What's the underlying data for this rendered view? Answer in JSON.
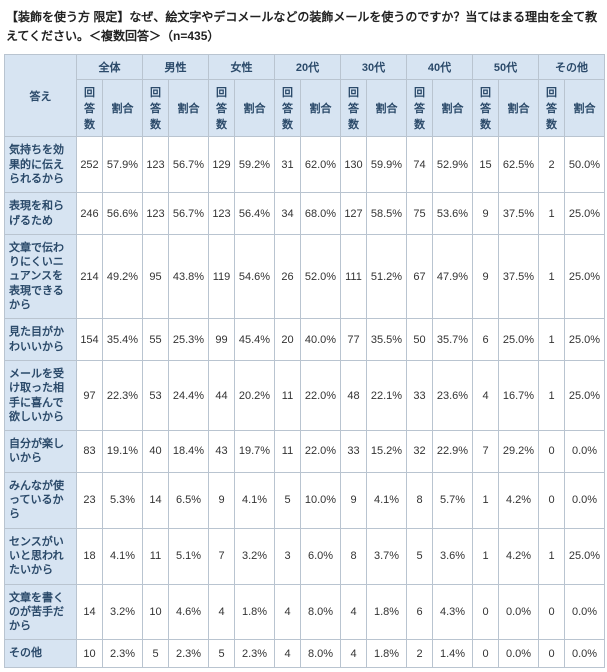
{
  "title": "【装飾を使う方 限定】なぜ、絵文字やデコメールなどの装飾メールを使うのですか？当てはまる理由を全て教えてください。＜複数回答＞（n=435）",
  "header": {
    "answer": "答え",
    "groups": [
      "全体",
      "男性",
      "女性",
      "20代",
      "30代",
      "40代",
      "50代",
      "その他"
    ],
    "sub_count": "回答数",
    "sub_pct": "割合"
  },
  "rows": [
    {
      "label": "気持ちを効果的に伝えられるから",
      "cells": [
        [
          "252",
          "57.9%"
        ],
        [
          "123",
          "56.7%"
        ],
        [
          "129",
          "59.2%"
        ],
        [
          "31",
          "62.0%"
        ],
        [
          "130",
          "59.9%"
        ],
        [
          "74",
          "52.9%"
        ],
        [
          "15",
          "62.5%"
        ],
        [
          "2",
          "50.0%"
        ]
      ]
    },
    {
      "label": "表現を和らげるため",
      "cells": [
        [
          "246",
          "56.6%"
        ],
        [
          "123",
          "56.7%"
        ],
        [
          "123",
          "56.4%"
        ],
        [
          "34",
          "68.0%"
        ],
        [
          "127",
          "58.5%"
        ],
        [
          "75",
          "53.6%"
        ],
        [
          "9",
          "37.5%"
        ],
        [
          "1",
          "25.0%"
        ]
      ]
    },
    {
      "label": "文章で伝わりにくいニュアンスを表現できるから",
      "cells": [
        [
          "214",
          "49.2%"
        ],
        [
          "95",
          "43.8%"
        ],
        [
          "119",
          "54.6%"
        ],
        [
          "26",
          "52.0%"
        ],
        [
          "111",
          "51.2%"
        ],
        [
          "67",
          "47.9%"
        ],
        [
          "9",
          "37.5%"
        ],
        [
          "1",
          "25.0%"
        ]
      ]
    },
    {
      "label": "見た目がかわいいから",
      "cells": [
        [
          "154",
          "35.4%"
        ],
        [
          "55",
          "25.3%"
        ],
        [
          "99",
          "45.4%"
        ],
        [
          "20",
          "40.0%"
        ],
        [
          "77",
          "35.5%"
        ],
        [
          "50",
          "35.7%"
        ],
        [
          "6",
          "25.0%"
        ],
        [
          "1",
          "25.0%"
        ]
      ]
    },
    {
      "label": "メールを受け取った相手に喜んで欲しいから",
      "cells": [
        [
          "97",
          "22.3%"
        ],
        [
          "53",
          "24.4%"
        ],
        [
          "44",
          "20.2%"
        ],
        [
          "11",
          "22.0%"
        ],
        [
          "48",
          "22.1%"
        ],
        [
          "33",
          "23.6%"
        ],
        [
          "4",
          "16.7%"
        ],
        [
          "1",
          "25.0%"
        ]
      ]
    },
    {
      "label": "自分が楽しいから",
      "cells": [
        [
          "83",
          "19.1%"
        ],
        [
          "40",
          "18.4%"
        ],
        [
          "43",
          "19.7%"
        ],
        [
          "11",
          "22.0%"
        ],
        [
          "33",
          "15.2%"
        ],
        [
          "32",
          "22.9%"
        ],
        [
          "7",
          "29.2%"
        ],
        [
          "0",
          "0.0%"
        ]
      ]
    },
    {
      "label": "みんなが使っているから",
      "cells": [
        [
          "23",
          "5.3%"
        ],
        [
          "14",
          "6.5%"
        ],
        [
          "9",
          "4.1%"
        ],
        [
          "5",
          "10.0%"
        ],
        [
          "9",
          "4.1%"
        ],
        [
          "8",
          "5.7%"
        ],
        [
          "1",
          "4.2%"
        ],
        [
          "0",
          "0.0%"
        ]
      ]
    },
    {
      "label": "センスがいいと思われたいから",
      "cells": [
        [
          "18",
          "4.1%"
        ],
        [
          "11",
          "5.1%"
        ],
        [
          "7",
          "3.2%"
        ],
        [
          "3",
          "6.0%"
        ],
        [
          "8",
          "3.7%"
        ],
        [
          "5",
          "3.6%"
        ],
        [
          "1",
          "4.2%"
        ],
        [
          "1",
          "25.0%"
        ]
      ]
    },
    {
      "label": "文章を書くのが苦手だから",
      "cells": [
        [
          "14",
          "3.2%"
        ],
        [
          "10",
          "4.6%"
        ],
        [
          "4",
          "1.8%"
        ],
        [
          "4",
          "8.0%"
        ],
        [
          "4",
          "1.8%"
        ],
        [
          "6",
          "4.3%"
        ],
        [
          "0",
          "0.0%"
        ],
        [
          "0",
          "0.0%"
        ]
      ]
    },
    {
      "label": "その他",
      "cells": [
        [
          "10",
          "2.3%"
        ],
        [
          "5",
          "2.3%"
        ],
        [
          "5",
          "2.3%"
        ],
        [
          "4",
          "8.0%"
        ],
        [
          "4",
          "1.8%"
        ],
        [
          "2",
          "1.4%"
        ],
        [
          "0",
          "0.0%"
        ],
        [
          "0",
          "0.0%"
        ]
      ]
    }
  ],
  "style": {
    "header_bg": "#d7e4f2",
    "header_text": "#2b4a6a",
    "border_color": "#b9c4d0",
    "body_bg": "#ffffff",
    "font_size_body": 11,
    "font_size_title": 12
  }
}
